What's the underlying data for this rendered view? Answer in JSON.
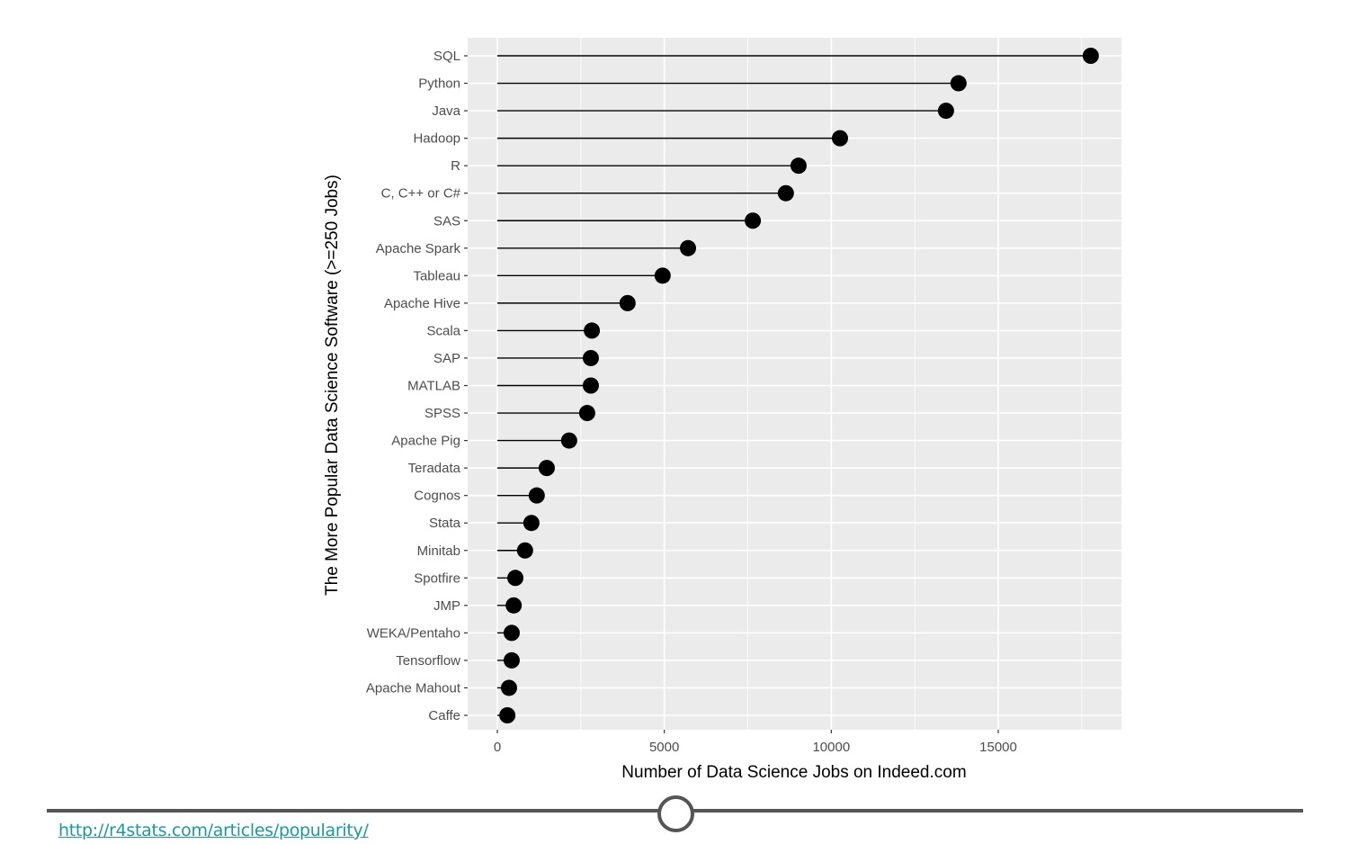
{
  "chart_data": {
    "type": "lollipop",
    "title": "",
    "xlabel": "Number of Data Science Jobs on Indeed.com",
    "ylabel": "The More Popular Data Science Software (>=250 Jobs)",
    "xlim": [
      -850,
      18700
    ],
    "xticks": [
      0,
      5000,
      10000,
      15000
    ],
    "xtick_labels": [
      "0",
      "5000",
      "10000",
      "15000"
    ],
    "grid": true,
    "legend": "none",
    "categories": [
      "SQL",
      "Python",
      "Java",
      "Hadoop",
      "R",
      "C, C++ or C#",
      "SAS",
      "Apache Spark",
      "Tableau",
      "Apache Hive",
      "Scala",
      "SAP",
      "MATLAB",
      "SPSS",
      "Apache Pig",
      "Teradata",
      "Cognos",
      "Stata",
      "Minitab",
      "Spotfire",
      "JMP",
      "WEKA/Pentaho",
      "Tensorflow",
      "Apache Mahout",
      "Caffe"
    ],
    "values": [
      17770,
      13810,
      13435,
      10260,
      9020,
      8640,
      7650,
      5710,
      4950,
      3900,
      2830,
      2800,
      2800,
      2690,
      2150,
      1480,
      1180,
      1020,
      830,
      540,
      490,
      430,
      430,
      350,
      300
    ]
  },
  "footer": {
    "source_link": "http://r4stats.com/articles/popularity/"
  },
  "colors": {
    "panel_bg": "#ebebeb",
    "grid": "#ffffff",
    "marker": "#000000",
    "tick_text": "#4d4d4d",
    "link": "#1a9aa0",
    "divider": "#555555"
  }
}
